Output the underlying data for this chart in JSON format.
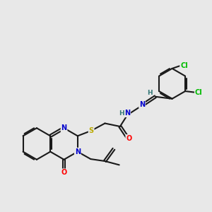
{
  "bg_color": "#e8e8e8",
  "bond_color": "#1a1a1a",
  "bond_width": 1.5,
  "atom_colors": {
    "N": "#0000cc",
    "O": "#ff0000",
    "S": "#bbaa00",
    "Cl": "#00bb00",
    "C": "#1a1a1a",
    "H": "#337777"
  },
  "font_size": 7.0,
  "fig_size": [
    3.0,
    3.0
  ],
  "dpi": 100
}
